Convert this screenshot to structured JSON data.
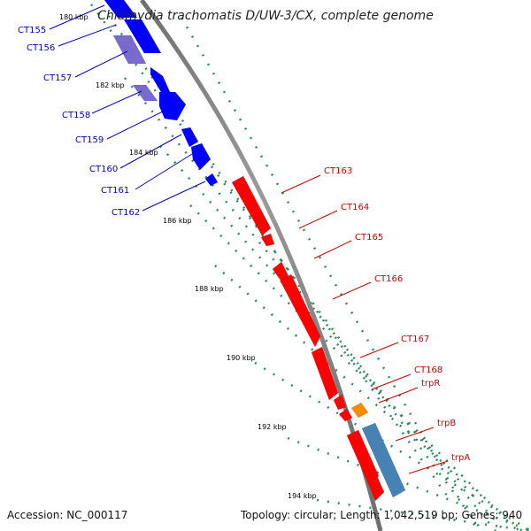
{
  "title": "Chlamydia trachomatis D/UW-3/CX, complete genome",
  "footer": {
    "accession": "Accession: NC_000117",
    "topology": "Topology: circular; Length: 1,042,519 bp; Genes: 940"
  },
  "colors": {
    "forward": "#0000ff",
    "forward_operon": "#7a6acd",
    "reverse": "#ff0000",
    "trpR": "#ff8c00",
    "trp_operon": "#4682b4",
    "backbone": "#808080",
    "tick_mark": "#2e8b57",
    "label_forward": "#0000cc",
    "label_reverse": "#cc0000"
  },
  "ticks": [
    "180 kbp",
    "182 kbp",
    "184 kbp",
    "186 kbp",
    "188 kbp",
    "190 kbp",
    "192 kbp",
    "194 kbp"
  ],
  "genes_forward": [
    "CT155",
    "CT156",
    "CT157",
    "CT158",
    "CT159",
    "CT160",
    "CT161",
    "CT162"
  ],
  "genes_reverse": [
    "CT163",
    "CT164",
    "CT165",
    "CT166",
    "CT167",
    "CT168",
    "trpR",
    "trpB",
    "trpA"
  ]
}
